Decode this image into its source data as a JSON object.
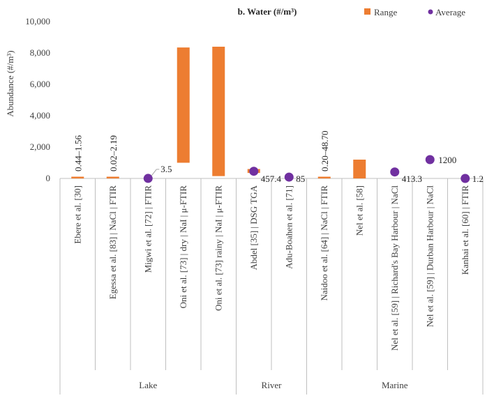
{
  "chart_data": {
    "type": "bar",
    "title": "b. Water (#/m³)",
    "ylabel": "Abundance (#/m³)",
    "ylim": [
      0,
      10000
    ],
    "yticks": [
      0,
      2000,
      4000,
      6000,
      8000,
      10000
    ],
    "ytick_labels": [
      "0",
      "2,000",
      "4,000",
      "6,000",
      "8,000",
      "10,000"
    ],
    "grid": false,
    "legend_position": "top-right",
    "colors": {
      "range": "#ED7D31",
      "average": "#7030A0",
      "axis": "#BFBFBF"
    },
    "series": [
      {
        "name": "Range",
        "kind": "floating-bar"
      },
      {
        "name": "Average",
        "kind": "marker"
      }
    ],
    "categories": [
      "Ebere et al. [30]",
      "Egessa et al. [83] | NaCl | FTIR",
      "Migwi et al. [72] | FTIR",
      "Oni et al. [73] | dry | NaI | μ-FTIR",
      "Oni et al. [73] rainy | NaI | μ-FTIR",
      "Abdel [35] | DSG TGA",
      "Adu-Boahen et al. [71]",
      "Naidoo et al. [64] | NaCl | FTIR",
      "Nel et al. [58]",
      "Nel et al. [59] | Richard's Bay Harbour | NaCl",
      "Nel et al. [59] | Durban Harbour | NaCl",
      "Kanhai et al. [60] | FTIR"
    ],
    "groups": [
      {
        "name": "Lake",
        "count": 5
      },
      {
        "name": "River",
        "count": 2
      },
      {
        "name": "Marine",
        "count": 5
      }
    ],
    "range_low": [
      0.44,
      0.02,
      null,
      1000,
      150,
      350,
      null,
      0.2,
      0,
      null,
      null,
      null
    ],
    "range_high": [
      1.56,
      2.19,
      null,
      8350,
      8400,
      600,
      null,
      48.7,
      1200,
      null,
      null,
      null
    ],
    "average": [
      null,
      null,
      3.5,
      null,
      null,
      457.4,
      85,
      null,
      null,
      413.3,
      1200,
      1.2
    ],
    "data_labels": [
      "0.44–1.56",
      "0.02–2.19",
      "3.5",
      "",
      "",
      "457.4",
      "85",
      "0.20–48.70",
      "",
      "413.3",
      "1200",
      "1.2"
    ]
  }
}
